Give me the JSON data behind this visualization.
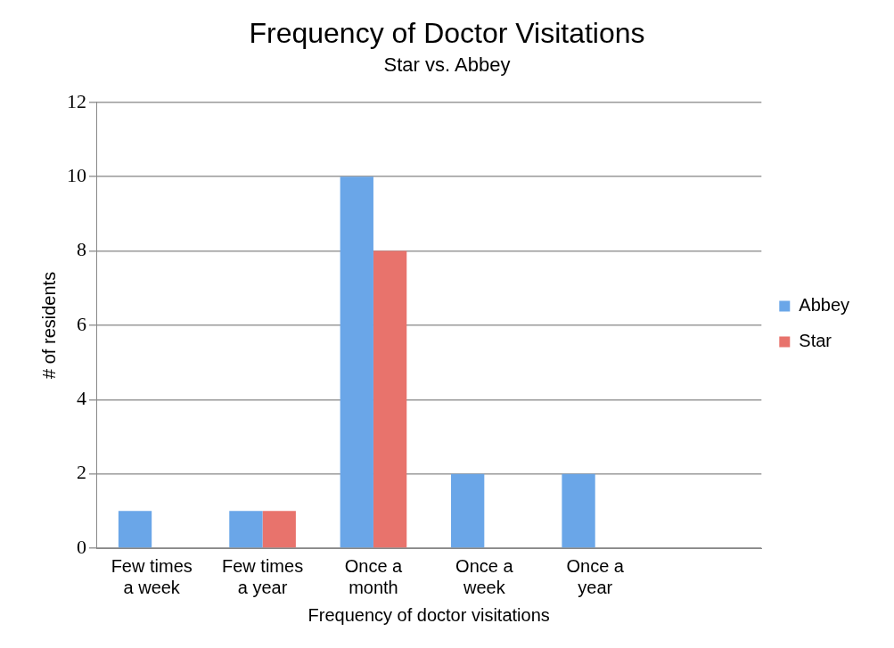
{
  "chart_data": {
    "type": "bar",
    "title": "Frequency of Doctor Visitations",
    "subtitle": "Star vs. Abbey",
    "xlabel": "Frequency of doctor visitations",
    "ylabel": "# of residents",
    "categories": [
      "Few times a week",
      "Few times a year",
      "Once a month",
      "Once a week",
      "Once a year",
      null
    ],
    "series": [
      {
        "name": "Abbey",
        "color": "#6aa6e8",
        "values": [
          1,
          1,
          10,
          2,
          2,
          null
        ]
      },
      {
        "name": "Star",
        "color": "#e8736c",
        "values": [
          null,
          1,
          8,
          null,
          null,
          null
        ]
      }
    ],
    "ylim": [
      0,
      12
    ],
    "yticks": [
      0,
      2,
      4,
      6,
      8,
      10,
      12
    ],
    "grid": "y",
    "legend": "right"
  }
}
